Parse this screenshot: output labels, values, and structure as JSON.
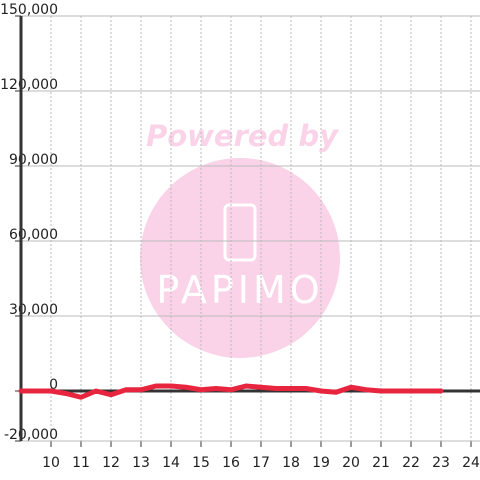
{
  "chart_data": {
    "type": "line",
    "watermark": {
      "title": "Powered by",
      "logo": "PAPIMO"
    },
    "x": [
      9,
      9.5,
      10,
      10.5,
      11,
      11.5,
      12,
      12.5,
      13,
      13.5,
      14,
      14.5,
      15,
      15.5,
      16,
      16.5,
      17,
      17.5,
      18,
      18.5,
      19,
      19.5,
      20,
      20.5,
      21,
      21.5,
      22,
      22.5,
      23
    ],
    "series": [
      {
        "color": "#e8253f",
        "values": [
          0,
          0,
          0,
          -1000,
          -2500,
          0,
          -1500,
          500,
          500,
          2000,
          2000,
          1500,
          500,
          1000,
          500,
          2000,
          1500,
          1000,
          1000,
          1000,
          0,
          -500,
          1500,
          500,
          0,
          0,
          0,
          0,
          0
        ]
      }
    ],
    "xlim": [
      9,
      24.3
    ],
    "xticks": [
      10,
      11,
      12,
      13,
      14,
      15,
      16,
      17,
      18,
      19,
      20,
      21,
      22,
      23,
      24
    ],
    "ylim": [
      -20000,
      150000
    ],
    "yticks": [
      {
        "value": -20000,
        "label": "-20,000"
      },
      0,
      {
        "value": 30000,
        "label": "30,000"
      },
      {
        "value": 60000,
        "label": "60,000"
      },
      {
        "value": 90000,
        "label": "90,000"
      },
      {
        "value": 120000,
        "label": "120,000"
      },
      {
        "value": 150000,
        "label": "150,000"
      }
    ],
    "grid": true
  }
}
